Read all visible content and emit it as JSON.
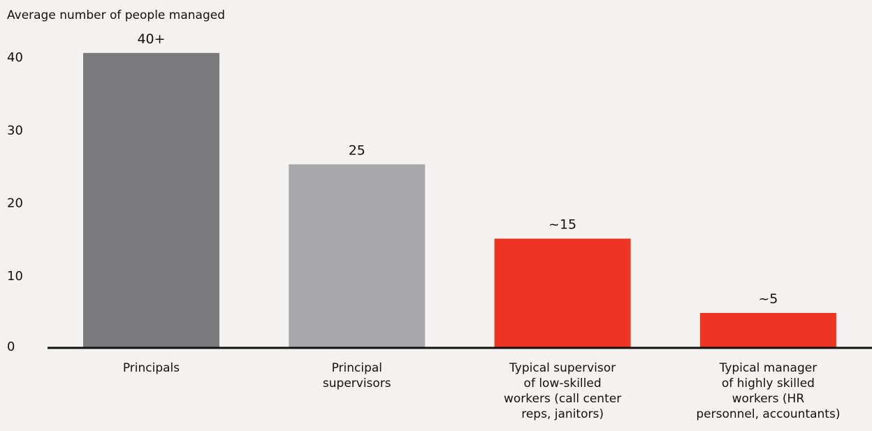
{
  "chart_data": {
    "type": "bar",
    "title": "",
    "ylabel": "Average number of people managed",
    "xlabel": "",
    "ylim": [
      0,
      40
    ],
    "yticks": [
      0,
      10,
      20,
      30,
      40
    ],
    "grid": false,
    "legend": "none",
    "categories": [
      [
        "Principals"
      ],
      [
        "Principal",
        "supervisors"
      ],
      [
        "Typical supervisor",
        "of low-skilled",
        "workers (call center",
        "reps, janitors)"
      ],
      [
        "Typical manager",
        "of highly skilled",
        "workers (HR",
        "personnel, accountants)"
      ]
    ],
    "values": [
      40.5,
      25.2,
      15,
      4.8
    ],
    "value_labels": [
      "40+",
      "25",
      "~15",
      "~5"
    ],
    "colors": [
      "#7b7b7d",
      "#a8a8ab",
      "#ee3524",
      "#ee3524"
    ],
    "axis_color": "#111111"
  }
}
